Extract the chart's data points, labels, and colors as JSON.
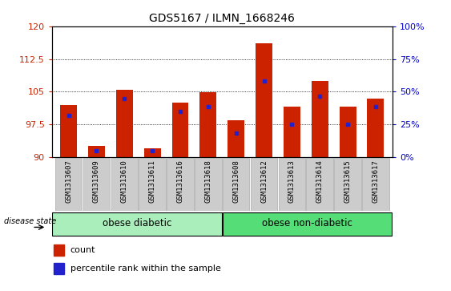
{
  "title": "GDS5167 / ILMN_1668246",
  "samples": [
    "GSM1313607",
    "GSM1313609",
    "GSM1313610",
    "GSM1313611",
    "GSM1313616",
    "GSM1313618",
    "GSM1313608",
    "GSM1313612",
    "GSM1313613",
    "GSM1313614",
    "GSM1313615",
    "GSM1313617"
  ],
  "red_values": [
    102.0,
    92.5,
    105.5,
    92.0,
    102.5,
    104.8,
    98.5,
    116.0,
    101.5,
    107.5,
    101.5,
    103.5
  ],
  "blue_values": [
    99.5,
    91.5,
    103.5,
    91.5,
    100.5,
    101.5,
    95.5,
    107.5,
    97.5,
    104.0,
    97.5,
    101.5
  ],
  "ymin": 90,
  "ymax": 120,
  "yticks_left": [
    90,
    97.5,
    105,
    112.5,
    120
  ],
  "yticks_right": [
    0,
    25,
    50,
    75,
    100
  ],
  "bar_width": 0.6,
  "bar_color": "#cc2200",
  "blue_color": "#2222cc",
  "group1_label": "obese diabetic",
  "group2_label": "obese non-diabetic",
  "group1_count": 6,
  "group2_count": 6,
  "legend_count": "count",
  "legend_percentile": "percentile rank within the sample",
  "disease_state_label": "disease state",
  "group_color1": "#aaeebb",
  "group_color2": "#55dd77",
  "xtick_bg": "#cccccc",
  "xtick_border": "#aaaaaa",
  "xlabel_color": "#cc2200",
  "ylabel_right_color": "#0000cc"
}
